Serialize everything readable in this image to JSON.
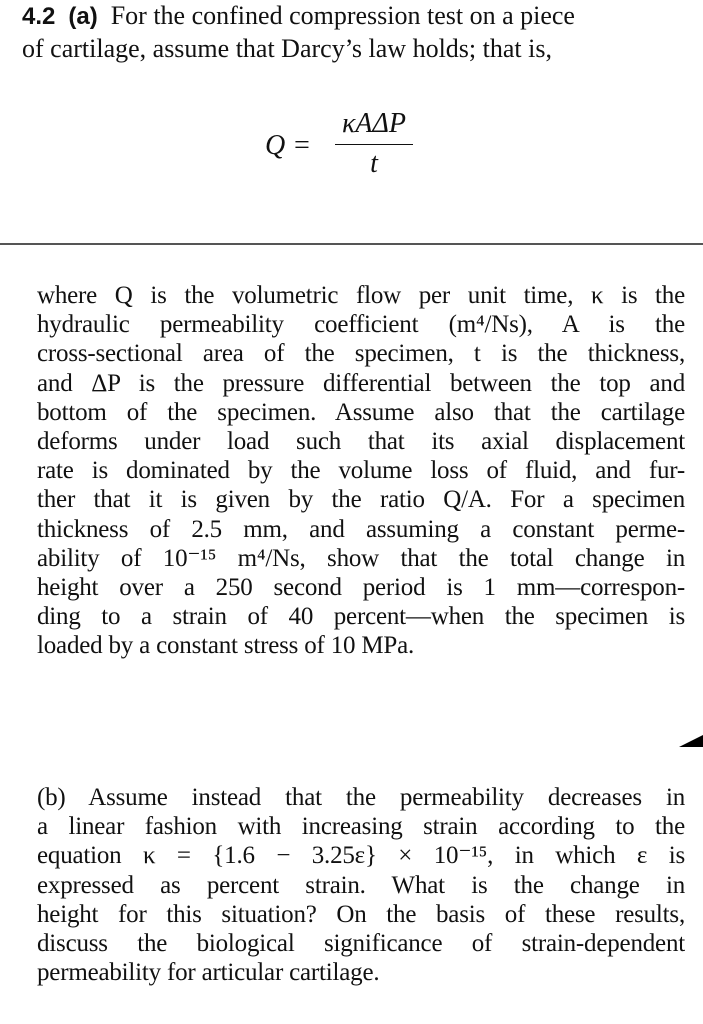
{
  "problem": {
    "number": "4.2",
    "part_a_label": "(a)",
    "header_line1": "For the confined compression test on a piece",
    "header_line2": "of cartilage, assume that Darcy’s law holds; that is,",
    "equation": {
      "lhs": "Q =",
      "numerator": "κAΔP",
      "denominator": "t"
    },
    "part_a_lines": [
      "where Q is the volumetric flow per unit time, κ is the",
      "hydraulic permeability coefficient (m⁴/Ns), A is the",
      "cross-sectional area of the specimen, t is the thickness,",
      "and ΔP is the pressure differential between the top and",
      "bottom of the specimen. Assume also that the cartilage",
      "deforms under load such that its axial displacement",
      "rate is dominated by the volume loss of fluid, and fur-",
      "ther that it is given by the ratio Q/A. For a specimen",
      "thickness of 2.5 mm, and assuming a constant perme-",
      "ability of 10⁻¹⁵ m⁴/Ns, show that the total change in",
      "height over a 250 second period is 1 mm—correspon-",
      "ding to a strain of 40 percent—when the specimen is",
      "loaded by a constant stress of 10 MPa."
    ],
    "part_b_lines": [
      "(b)  Assume instead that the permeability decreases in",
      "a linear fashion with increasing strain according to the",
      "equation κ = {1.6 − 3.25ε} × 10⁻¹⁵, in which ε is",
      "expressed as percent strain. What is the change in",
      "height for this situation? On the basis of these results,",
      "discuss the biological significance of strain-dependent",
      "permeability for articular cartilage."
    ]
  }
}
